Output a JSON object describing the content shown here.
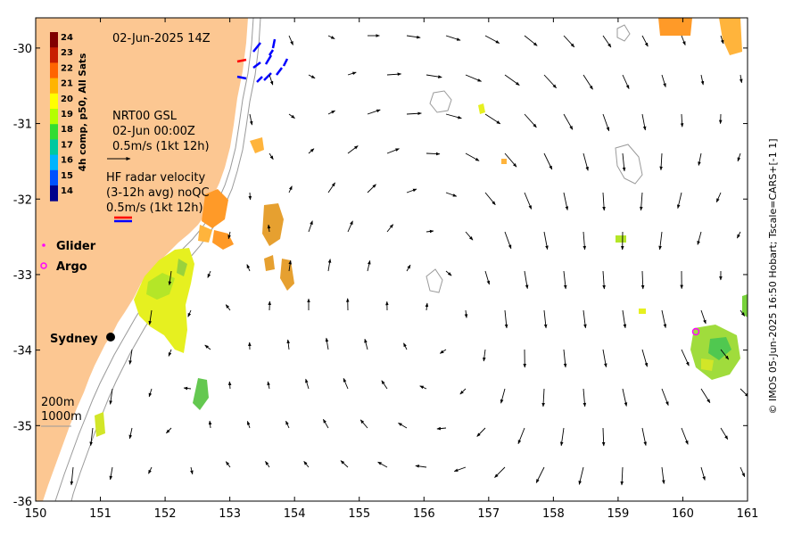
{
  "map": {
    "lon_range": [
      150,
      161
    ],
    "lat_range": [
      -36,
      -29.6
    ],
    "x_ticks": [
      "150",
      "151",
      "152",
      "153",
      "154",
      "155",
      "156",
      "157",
      "158",
      "159",
      "160",
      "161"
    ],
    "y_ticks": [
      "-30",
      "-31",
      "-32",
      "-33",
      "-34",
      "-35",
      "-36"
    ],
    "x_tick_values": [
      150,
      151,
      152,
      153,
      154,
      155,
      156,
      157,
      158,
      159,
      160,
      161
    ],
    "y_tick_values": [
      -30,
      -31,
      -32,
      -33,
      -34,
      -35,
      -36
    ],
    "land_color": "#FCC792",
    "contour_color": "#9a9a9a"
  },
  "labels": {
    "date": "02-Jun-2025 14Z",
    "gsl_title": "NRT00 GSL",
    "gsl_time": "02-Jun 00:00Z",
    "gsl_scale": "0.5m/s (1kt 12h)",
    "hf_title": "HF radar velocity",
    "hf_sub": "(3-12h avg) noQC",
    "hf_scale": "0.5m/s (1kt 12h)",
    "glider": "Glider",
    "argo": "Argo",
    "sydney": "Sydney",
    "iso_200": "200m",
    "iso_1000": "1000m",
    "credit": "© IMOS 05-Jun-2025 16:50 Hobart; Tscale=CARS+[-1 1]"
  },
  "colorbar": {
    "title": "4h comp, p50, All Sats",
    "ticks": [
      "24",
      "23",
      "22",
      "21",
      "20",
      "19",
      "18",
      "17",
      "16",
      "15",
      "14"
    ],
    "tick_values": [
      24,
      23,
      22,
      21,
      20,
      19,
      18,
      17,
      16,
      15,
      14
    ],
    "colors": [
      "#800000",
      "#c81e00",
      "#ff6400",
      "#ffb400",
      "#ffff00",
      "#b4ff00",
      "#32dc32",
      "#00c8a0",
      "#00b4ff",
      "#0050ff",
      "#00008c"
    ]
  },
  "markers": {
    "glider_color": "#ff00ff",
    "argo_color": "#ff00ff",
    "hf_colors": [
      "#ff0000",
      "#0000ff"
    ]
  }
}
